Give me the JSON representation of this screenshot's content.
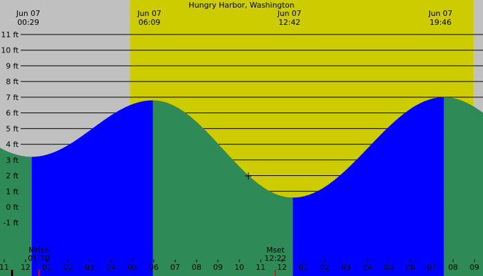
{
  "chart_data": {
    "type": "area",
    "title": "Hungry Harbor, Washington",
    "xlabel": "",
    "ylabel": "",
    "y_unit": "ft",
    "y_ticks": [
      "11 ft",
      "10 ft",
      "9 ft",
      "8 ft",
      "7 ft",
      "6 ft",
      "5 ft",
      "4 ft",
      "3 ft",
      "2 ft",
      "1 ft",
      "0 ft",
      "-1 ft"
    ],
    "y_tick_values": [
      11,
      10,
      9,
      8,
      7,
      6,
      5,
      4,
      3,
      2,
      1,
      0,
      -1
    ],
    "x_range": [
      "Jun 06 23:00",
      "Jun 08 09:18"
    ],
    "hour_ticks": [
      "11",
      "12",
      "01",
      "02",
      "03",
      "04",
      "05",
      "06",
      "07",
      "08",
      "09",
      "10",
      "11",
      "12",
      "01",
      "02",
      "03",
      "04",
      "05",
      "06",
      "07",
      "08",
      "09"
    ],
    "tide_events": [
      {
        "date": "Jun 07",
        "time": "00:29",
        "type": "low",
        "height_ft": 3.2
      },
      {
        "date": "Jun 07",
        "time": "06:09",
        "type": "high",
        "height_ft": 6.8
      },
      {
        "date": "Jun 07",
        "time": "12:42",
        "type": "low",
        "height_ft": 0.6
      },
      {
        "date": "Jun 07",
        "time": "19:46",
        "type": "high",
        "height_ft": 7.0
      }
    ],
    "moon_events": [
      {
        "label": "Mrise",
        "time": "01:18"
      },
      {
        "label": "Mset",
        "time": "12:22"
      }
    ],
    "daylight": {
      "start": "Jun 07 05:05",
      "end": "Jun 07 21:10"
    },
    "grid": true,
    "colors": {
      "night": "#c0c0c0",
      "day": "#cccc00",
      "rising": "#0000ff",
      "falling": "#2e8b57",
      "grid": "#000000",
      "moon_marker": "#ff0000"
    }
  }
}
